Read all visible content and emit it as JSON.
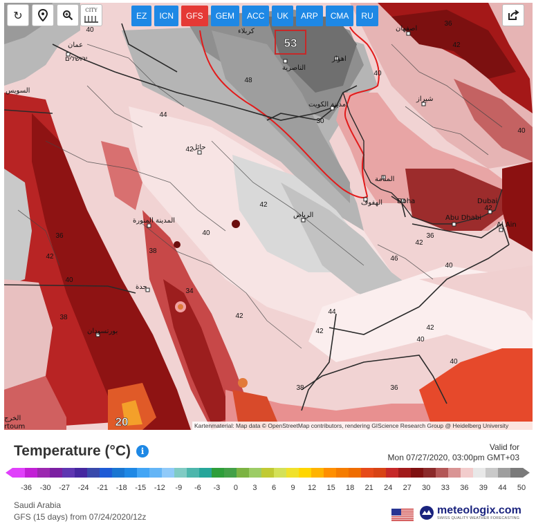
{
  "toolbar": {
    "reload_icon": "reload-icon",
    "locate_icon": "map-pin-icon",
    "zoom_icon": "zoom-icon",
    "city_label": "CITY",
    "share_icon": "share-icon"
  },
  "models": [
    {
      "label": "EZ",
      "active": false
    },
    {
      "label": "ICN",
      "active": false
    },
    {
      "label": "GFS",
      "active": true
    },
    {
      "label": "GEM",
      "active": false
    },
    {
      "label": "ACC",
      "active": false
    },
    {
      "label": "UK",
      "active": false
    },
    {
      "label": "ARP",
      "active": false
    },
    {
      "label": "CMA",
      "active": false
    },
    {
      "label": "RU",
      "active": false
    }
  ],
  "map": {
    "max_value_label": "53",
    "corner_value": "20",
    "cities": {
      "kuwait": "مدينة الكويت",
      "basra": "كربلاء",
      "nasiriyah": "الناصرية",
      "ahvaz": "اهواز",
      "isfahan": "اصفهان",
      "shiraz": "شیراز",
      "hail": "حائل",
      "madinah": "المدينة المنورة",
      "riyadh": "الرياض",
      "jeddah": "جدة",
      "port_sudan": "بورتسودان",
      "manama": "المنامة",
      "hofuf": "الهفوف",
      "doha": "Doha",
      "dubai": "Dubai",
      "abu_dhabi": "Abu Dhabi",
      "al_ain": "Al Ain",
      "amman": "عمان",
      "jerusalem": "ירושלים",
      "suez": "السويس",
      "khartoum": "rtoum",
      "kharj": "الخرج"
    },
    "values": [
      "40",
      "48",
      "44",
      "42",
      "30",
      "40",
      "36",
      "42",
      "40",
      "42",
      "40",
      "38",
      "34",
      "42",
      "40",
      "36",
      "38",
      "46",
      "44",
      "40",
      "42",
      "42",
      "38",
      "36",
      "40",
      "42",
      "36",
      "42",
      "40",
      "42"
    ]
  },
  "attribution": "Kartenmaterial: Map data © OpenStreetMap contributors, rendering GIScience Research Group @ Heidelberg University",
  "title": "Temperature (°C)",
  "valid_label": "Valid for",
  "valid_time": "Mon 07/27/2020, 03:00pm GMT+03",
  "scale": {
    "ticks": [
      "-36",
      "-30",
      "-27",
      "-24",
      "-21",
      "-18",
      "-15",
      "-12",
      "-9",
      "-6",
      "-3",
      "0",
      "3",
      "6",
      "9",
      "12",
      "15",
      "18",
      "21",
      "24",
      "27",
      "30",
      "33",
      "36",
      "39",
      "44",
      "50"
    ],
    "colors": [
      "#e040fb",
      "#c21fd6",
      "#9c27b0",
      "#7b1fa2",
      "#5e35b1",
      "#4527a0",
      "#3949ab",
      "#1e5bd6",
      "#1976d2",
      "#1e88e5",
      "#42a5f5",
      "#64b5f6",
      "#90caf9",
      "#80cbc4",
      "#4db6ac",
      "#26a69a",
      "#2e9e3a",
      "#43a047",
      "#7cb342",
      "#9ccc65",
      "#c0ca33",
      "#d4e157",
      "#f0e12b",
      "#ffd600",
      "#ffb300",
      "#ff8f00",
      "#f57c00",
      "#ef6c00",
      "#e64a19",
      "#d84315",
      "#c62828",
      "#a11a1a",
      "#7f1111",
      "#8b2a2a",
      "#b35757",
      "#d99494",
      "#f2cccc",
      "#e8e8e8",
      "#c9c9c9",
      "#9e9e9e",
      "#7a7a7a"
    ]
  },
  "region": "Saudi Arabia",
  "run": "GFS  (15 days) from 07/24/2020/12z",
  "brand": {
    "name": "meteologix.com",
    "tagline": "SWISS QUALITY WEATHER FORECASTING"
  }
}
